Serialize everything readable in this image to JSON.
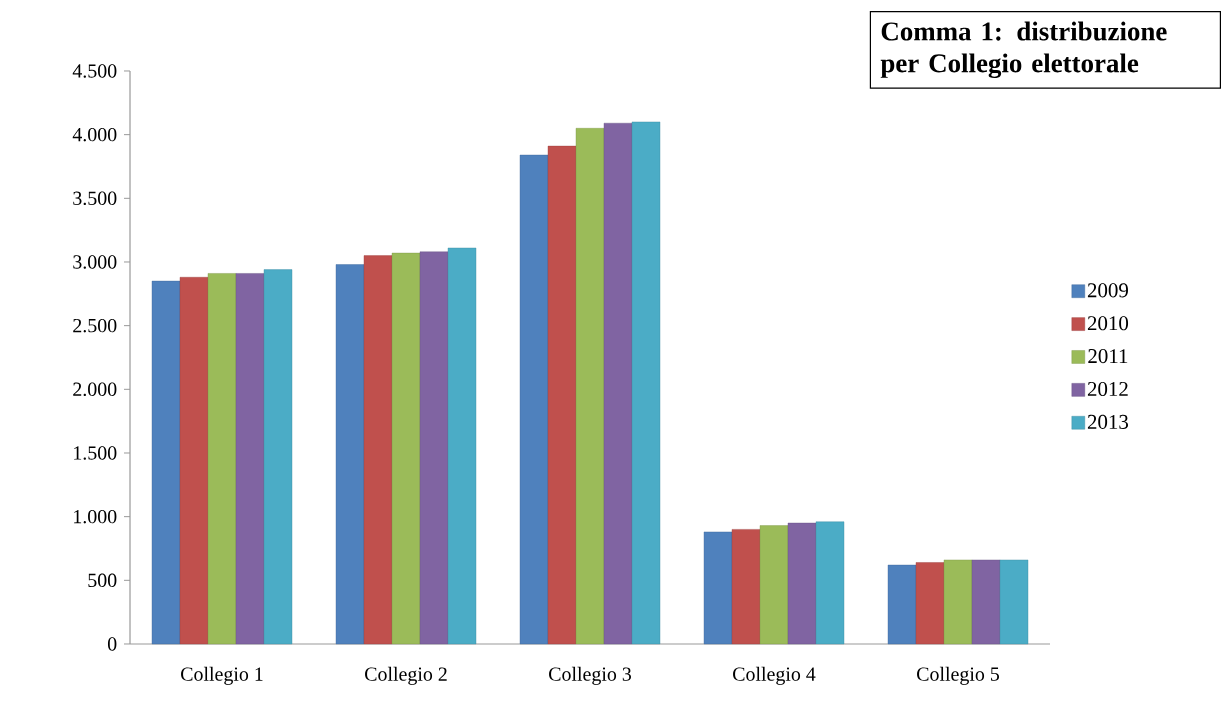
{
  "chart_data": {
    "type": "bar",
    "title": "Comma 1: distribuzione per Collegio elettorale",
    "categories": [
      "Collegio 1",
      "Collegio 2",
      "Collegio 3",
      "Collegio 4",
      "Collegio 5"
    ],
    "series": [
      {
        "name": "2009",
        "color": "#4f81bd",
        "values": [
          2850,
          2980,
          3840,
          880,
          620
        ]
      },
      {
        "name": "2010",
        "color": "#c0504d",
        "values": [
          2880,
          3050,
          3910,
          900,
          640
        ]
      },
      {
        "name": "2011",
        "color": "#9bbb59",
        "values": [
          2910,
          3070,
          4050,
          930,
          660
        ]
      },
      {
        "name": "2012",
        "color": "#8064a2",
        "values": [
          2910,
          3080,
          4090,
          950,
          660
        ]
      },
      {
        "name": "2013",
        "color": "#4bacc6",
        "values": [
          2940,
          3110,
          4100,
          960,
          660
        ]
      }
    ],
    "ylim": [
      0,
      4500
    ],
    "yticks": [
      0,
      500,
      {
        "value": 1000,
        "label": "1.000"
      },
      {
        "value": 1500,
        "label": "1.500"
      },
      {
        "value": 2000,
        "label": "2.000"
      },
      {
        "value": 2500,
        "label": "2.500"
      },
      {
        "value": 3000,
        "label": "3.000"
      },
      {
        "value": 3500,
        "label": "3.500"
      },
      {
        "value": 4000,
        "label": "4.000"
      },
      {
        "value": 4500,
        "label": "4.500"
      }
    ],
    "legend": "right"
  }
}
